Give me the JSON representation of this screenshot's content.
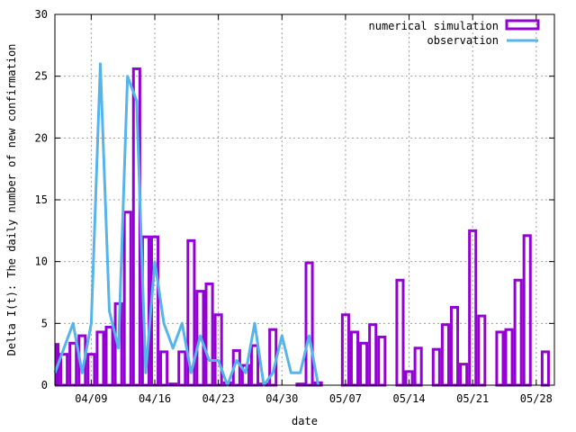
{
  "chart_data": {
    "type": "bar",
    "xlabel": "date",
    "ylabel": "Delta I(t): The daily number of new confirmation",
    "ylim": [
      0,
      30
    ],
    "yticks": [
      0,
      5,
      10,
      15,
      20,
      25,
      30
    ],
    "x_range": [
      "04/05",
      "05/30"
    ],
    "x_ticks": [
      "04/09",
      "04/16",
      "04/23",
      "04/30",
      "05/07",
      "05/14",
      "05/21",
      "05/28"
    ],
    "grid": true,
    "legend_position": "top-right",
    "series": [
      {
        "name": "numerical simulation",
        "kind": "bar",
        "color": "#9400d3",
        "points": [
          {
            "x": "04/05",
            "y": 3.3
          },
          {
            "x": "04/06",
            "y": 2.5
          },
          {
            "x": "04/07",
            "y": 3.4
          },
          {
            "x": "04/08",
            "y": 4.0
          },
          {
            "x": "04/09",
            "y": 2.5
          },
          {
            "x": "04/10",
            "y": 4.3
          },
          {
            "x": "04/11",
            "y": 4.7
          },
          {
            "x": "04/12",
            "y": 6.6
          },
          {
            "x": "04/13",
            "y": 14.0
          },
          {
            "x": "04/14",
            "y": 25.6
          },
          {
            "x": "04/15",
            "y": 12.0
          },
          {
            "x": "04/16",
            "y": 12.0
          },
          {
            "x": "04/17",
            "y": 2.7
          },
          {
            "x": "04/18",
            "y": 0.1
          },
          {
            "x": "04/19",
            "y": 2.7
          },
          {
            "x": "04/20",
            "y": 11.7
          },
          {
            "x": "04/21",
            "y": 7.6
          },
          {
            "x": "04/22",
            "y": 8.2
          },
          {
            "x": "04/23",
            "y": 5.7
          },
          {
            "x": "04/24",
            "y": 0.2
          },
          {
            "x": "04/25",
            "y": 2.8
          },
          {
            "x": "04/26",
            "y": 1.6
          },
          {
            "x": "04/27",
            "y": 3.2
          },
          {
            "x": "04/28",
            "y": 0.1
          },
          {
            "x": "04/29",
            "y": 4.5
          },
          {
            "x": "05/02",
            "y": 0.1
          },
          {
            "x": "05/03",
            "y": 9.9
          },
          {
            "x": "05/04",
            "y": 0.2
          },
          {
            "x": "05/07",
            "y": 5.7
          },
          {
            "x": "05/08",
            "y": 4.3
          },
          {
            "x": "05/09",
            "y": 3.4
          },
          {
            "x": "05/10",
            "y": 4.9
          },
          {
            "x": "05/11",
            "y": 3.9
          },
          {
            "x": "05/13",
            "y": 8.5
          },
          {
            "x": "05/14",
            "y": 1.1
          },
          {
            "x": "05/15",
            "y": 3.0
          },
          {
            "x": "05/17",
            "y": 2.9
          },
          {
            "x": "05/18",
            "y": 4.9
          },
          {
            "x": "05/19",
            "y": 6.3
          },
          {
            "x": "05/20",
            "y": 1.7
          },
          {
            "x": "05/21",
            "y": 12.5
          },
          {
            "x": "05/22",
            "y": 5.6
          },
          {
            "x": "05/24",
            "y": 4.3
          },
          {
            "x": "05/25",
            "y": 4.5
          },
          {
            "x": "05/26",
            "y": 8.5
          },
          {
            "x": "05/27",
            "y": 12.1
          },
          {
            "x": "05/29",
            "y": 2.7
          }
        ]
      },
      {
        "name": "observation",
        "kind": "line",
        "color": "#56b4e9",
        "points": [
          {
            "x": "04/05",
            "y": 1
          },
          {
            "x": "04/06",
            "y": 3
          },
          {
            "x": "04/07",
            "y": 5
          },
          {
            "x": "04/08",
            "y": 1
          },
          {
            "x": "04/09",
            "y": 5
          },
          {
            "x": "04/10",
            "y": 26
          },
          {
            "x": "04/11",
            "y": 6
          },
          {
            "x": "04/12",
            "y": 3
          },
          {
            "x": "04/13",
            "y": 25
          },
          {
            "x": "04/14",
            "y": 23
          },
          {
            "x": "04/15",
            "y": 1
          },
          {
            "x": "04/16",
            "y": 10
          },
          {
            "x": "04/17",
            "y": 5
          },
          {
            "x": "04/18",
            "y": 3
          },
          {
            "x": "04/19",
            "y": 5
          },
          {
            "x": "04/20",
            "y": 1
          },
          {
            "x": "04/21",
            "y": 4
          },
          {
            "x": "04/22",
            "y": 2
          },
          {
            "x": "04/23",
            "y": 2
          },
          {
            "x": "04/24",
            "y": 0
          },
          {
            "x": "04/25",
            "y": 2
          },
          {
            "x": "04/26",
            "y": 1
          },
          {
            "x": "04/27",
            "y": 5
          },
          {
            "x": "04/28",
            "y": 0
          },
          {
            "x": "04/29",
            "y": 1
          },
          {
            "x": "04/30",
            "y": 4
          },
          {
            "x": "05/01",
            "y": 1
          },
          {
            "x": "05/02",
            "y": 1
          },
          {
            "x": "05/03",
            "y": 4
          },
          {
            "x": "05/04",
            "y": 0
          }
        ]
      }
    ]
  }
}
